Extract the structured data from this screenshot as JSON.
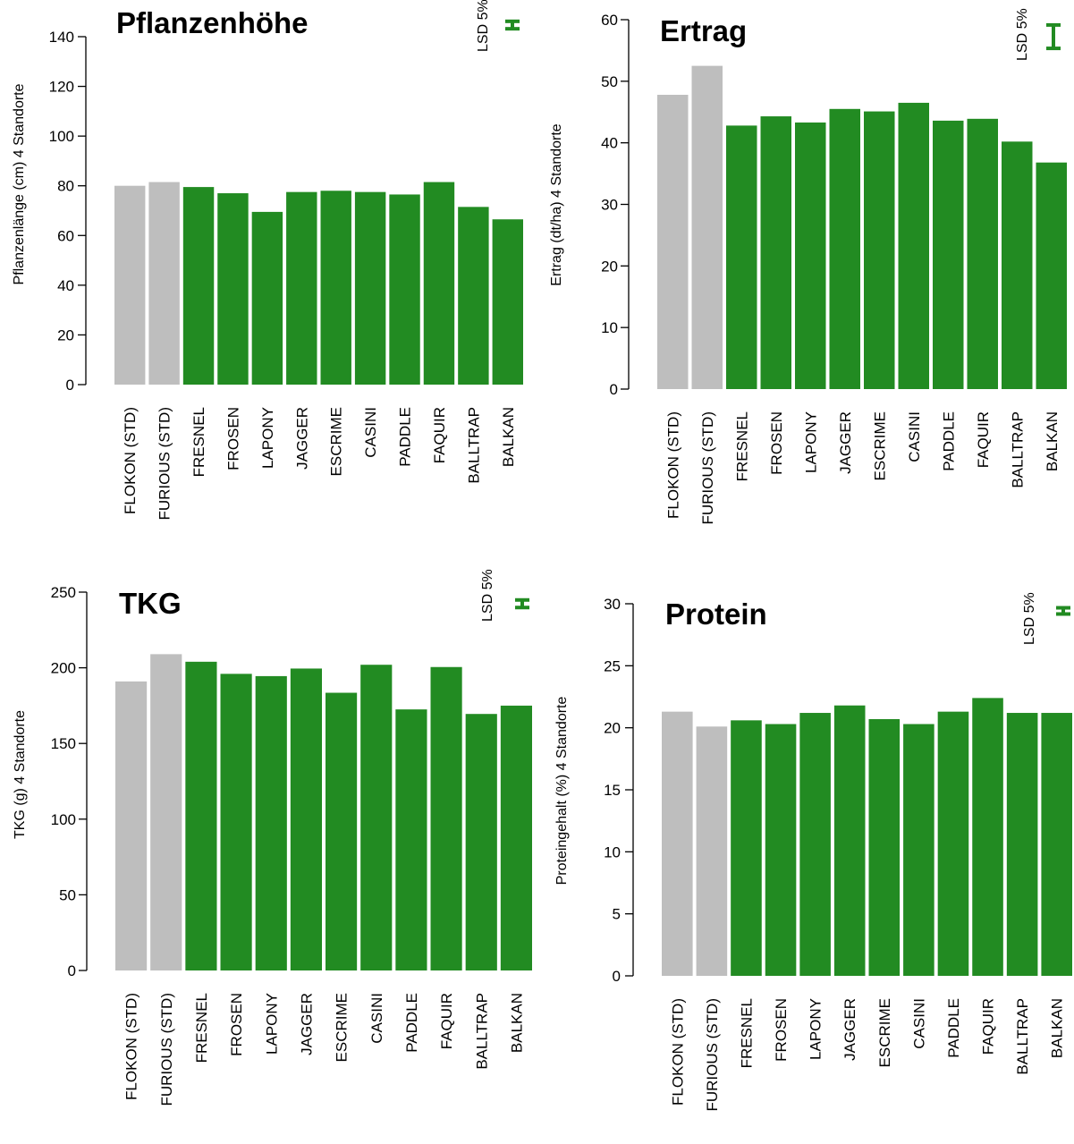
{
  "colors": {
    "standard": "#bebebe",
    "variety": "#228b22",
    "lsd": "#228b22",
    "axis": "#000000"
  },
  "chart_data": [
    {
      "type": "bar",
      "title": "Pflanzenhöhe",
      "ylabel": "Pflanzenlänge (cm) 4 Standorte",
      "ylim": [
        0,
        140
      ],
      "yticks": [
        0,
        20,
        40,
        60,
        80,
        100,
        120,
        140
      ],
      "categories": [
        "FLOKON (STD)",
        "FURIOUS (STD)",
        "FRESNEL",
        "FROSEN",
        "LAPONY",
        "JAGGER",
        "ESCRIME",
        "CASINI",
        "PADDLE",
        "FAQUIR",
        "BALLTRAP",
        "BALKAN"
      ],
      "values": [
        80,
        81.5,
        79.5,
        77,
        69.5,
        77.5,
        78,
        77.5,
        76.5,
        81.5,
        71.5,
        66.5
      ],
      "standard_count": 2,
      "lsd_label": "LSD 5%",
      "lsd_value": 3
    },
    {
      "type": "bar",
      "title": "Ertrag",
      "ylabel": "Ertrag (dt/ha) 4 Standorte",
      "ylim": [
        0,
        60
      ],
      "yticks": [
        0,
        10,
        20,
        30,
        40,
        50,
        60
      ],
      "categories": [
        "FLOKON (STD)",
        "FURIOUS (STD)",
        "FRESNEL",
        "FROSEN",
        "LAPONY",
        "JAGGER",
        "ESCRIME",
        "CASINI",
        "PADDLE",
        "FAQUIR",
        "BALLTRAP",
        "BALKAN"
      ],
      "values": [
        47.8,
        52.5,
        42.8,
        44.3,
        43.3,
        45.5,
        45.1,
        46.5,
        43.6,
        43.9,
        40.2,
        36.8
      ],
      "standard_count": 2,
      "lsd_label": "LSD 5%",
      "lsd_value": 3.8
    },
    {
      "type": "bar",
      "title": "TKG",
      "ylabel": "TKG (g) 4 Standorte",
      "ylim": [
        0,
        250
      ],
      "yticks": [
        0,
        50,
        100,
        150,
        200,
        250
      ],
      "categories": [
        "FLOKON (STD)",
        "FURIOUS (STD)",
        "FRESNEL",
        "FROSEN",
        "LAPONY",
        "JAGGER",
        "ESCRIME",
        "CASINI",
        "PADDLE",
        "FAQUIR",
        "BALLTRAP",
        "BALKAN"
      ],
      "values": [
        191,
        209,
        204,
        196,
        194.5,
        199.5,
        183.5,
        202,
        172.5,
        200.5,
        169.5,
        175
      ],
      "standard_count": 2,
      "lsd_label": "LSD 5%",
      "lsd_value": 5
    },
    {
      "type": "bar",
      "title": "Protein",
      "ylabel": "Proteingehalt (%) 4 Standorte",
      "ylim": [
        0,
        30
      ],
      "yticks": [
        0,
        5,
        10,
        15,
        20,
        25,
        30
      ],
      "categories": [
        "FLOKON (STD)",
        "FURIOUS (STD)",
        "FRESNEL",
        "FROSEN",
        "LAPONY",
        "JAGGER",
        "ESCRIME",
        "CASINI",
        "PADDLE",
        "FAQUIR",
        "BALLTRAP",
        "BALKAN"
      ],
      "values": [
        21.3,
        20.1,
        20.6,
        20.3,
        21.2,
        21.8,
        20.7,
        20.3,
        21.3,
        22.4,
        21.2,
        21.2
      ],
      "standard_count": 2,
      "lsd_label": "LSD 5%",
      "lsd_value": 0.5
    }
  ]
}
